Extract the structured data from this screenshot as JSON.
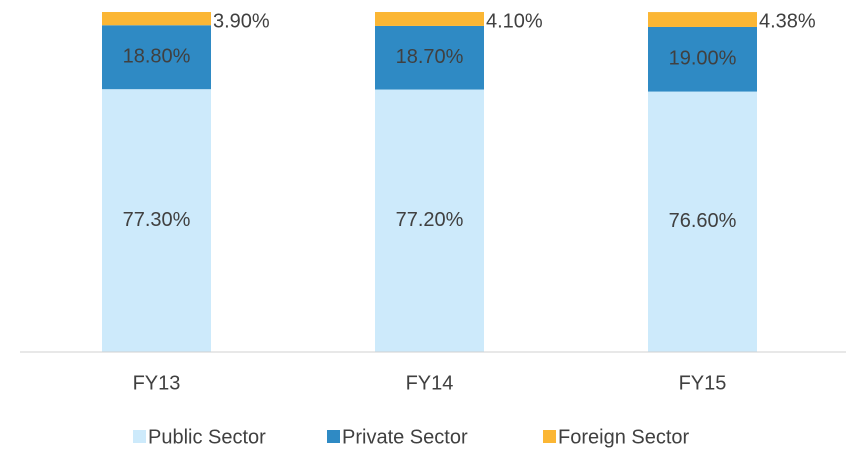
{
  "chart_data": {
    "type": "stacked-bar",
    "categories": [
      "FY13",
      "FY14",
      "FY15"
    ],
    "series": [
      {
        "name": "Public Sector",
        "color": "#cdeafb",
        "values": [
          77.3,
          77.2,
          76.6
        ],
        "value_labels": [
          "77.30%",
          "77.20%",
          "76.60%"
        ]
      },
      {
        "name": "Private Sector",
        "color": "#2f8ac4",
        "values": [
          18.8,
          18.7,
          19.0
        ],
        "value_labels": [
          "18.80%",
          "18.70%",
          "19.00%"
        ]
      },
      {
        "name": "Foreign Sector",
        "color": "#fbb634",
        "values": [
          3.9,
          4.1,
          4.38
        ],
        "value_labels": [
          "3.90%",
          "4.10%",
          "4.38%"
        ]
      }
    ],
    "ylim": [
      0,
      100
    ],
    "grid": false,
    "legend": "bottom"
  }
}
